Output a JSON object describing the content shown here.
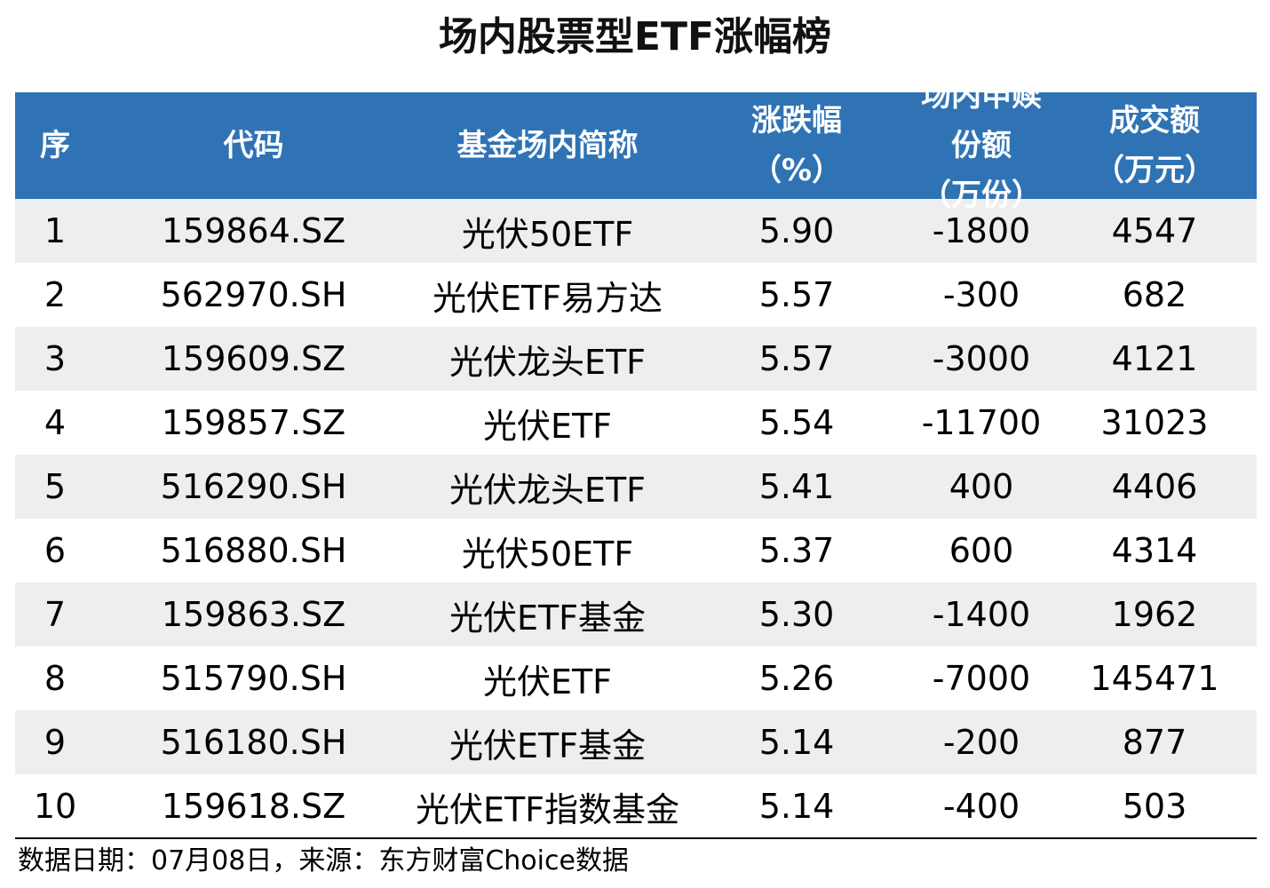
{
  "title": "场内股票型ETF涨幅榜",
  "header": {
    "rank": "序",
    "code": "代码",
    "name": "基金场内简称",
    "change_line1": "涨跌幅",
    "change_line2": "（%）",
    "flow_line1": "场内申赎份额",
    "flow_line2": "（万份）",
    "volume_line1": "成交额",
    "volume_line2": "（万元）"
  },
  "rows": [
    {
      "rank": "1",
      "code": "159864.SZ",
      "name": "光伏50ETF",
      "change": "5.90",
      "flow": "-1800",
      "volume": "4547"
    },
    {
      "rank": "2",
      "code": "562970.SH",
      "name": "光伏ETF易方达",
      "change": "5.57",
      "flow": "-300",
      "volume": "682"
    },
    {
      "rank": "3",
      "code": "159609.SZ",
      "name": "光伏龙头ETF",
      "change": "5.57",
      "flow": "-3000",
      "volume": "4121"
    },
    {
      "rank": "4",
      "code": "159857.SZ",
      "name": "光伏ETF",
      "change": "5.54",
      "flow": "-11700",
      "volume": "31023"
    },
    {
      "rank": "5",
      "code": "516290.SH",
      "name": "光伏龙头ETF",
      "change": "5.41",
      "flow": "400",
      "volume": "4406"
    },
    {
      "rank": "6",
      "code": "516880.SH",
      "name": "光伏50ETF",
      "change": "5.37",
      "flow": "600",
      "volume": "4314"
    },
    {
      "rank": "7",
      "code": "159863.SZ",
      "name": "光伏ETF基金",
      "change": "5.30",
      "flow": "-1400",
      "volume": "1962"
    },
    {
      "rank": "8",
      "code": "515790.SH",
      "name": "光伏ETF",
      "change": "5.26",
      "flow": "-7000",
      "volume": "145471"
    },
    {
      "rank": "9",
      "code": "516180.SH",
      "name": "光伏ETF基金",
      "change": "5.14",
      "flow": "-200",
      "volume": "877"
    },
    {
      "rank": "10",
      "code": "159618.SZ",
      "name": "光伏ETF指数基金",
      "change": "5.14",
      "flow": "-400",
      "volume": "503"
    }
  ],
  "footnote": "数据日期：07月08日，来源：东方财富Choice数据",
  "colors": {
    "header_bg": "#2f73b5",
    "header_text": "#ffffff",
    "shaded_row": "#eeeeee"
  }
}
